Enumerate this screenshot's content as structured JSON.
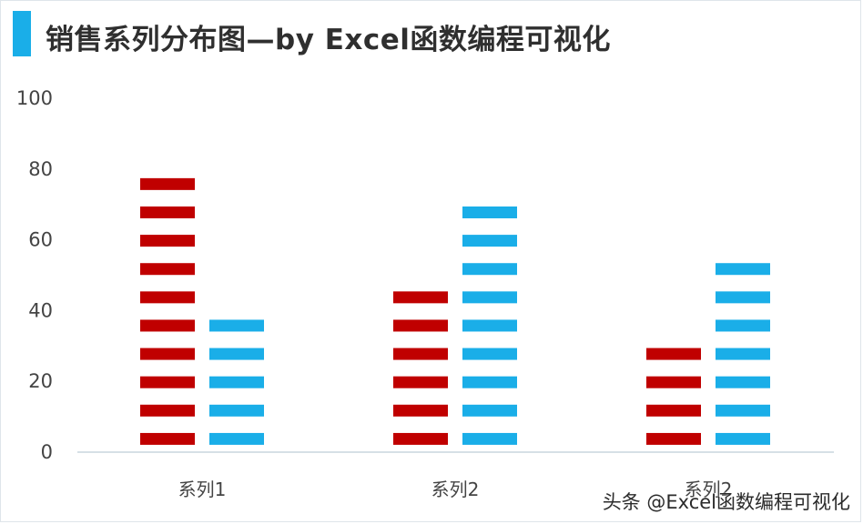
{
  "title": "销售系列分布图—by Excel函数编程可视化",
  "watermark": "头条 @Excel函数编程可视化",
  "chart_data": {
    "type": "bar",
    "style": "stacked-segment pictograph",
    "categories": [
      "系列1",
      "系列2",
      "系列2"
    ],
    "series": [
      {
        "values": [
          80,
          48,
          32
        ],
        "color": "#c00000"
      },
      {
        "values": [
          40,
          72,
          56
        ],
        "color": "#1aaee8"
      }
    ],
    "ylim": [
      0,
      100
    ],
    "yticks": [
      "0",
      "20",
      "40",
      "60",
      "80",
      "100"
    ],
    "grid": false,
    "legend": "none"
  }
}
